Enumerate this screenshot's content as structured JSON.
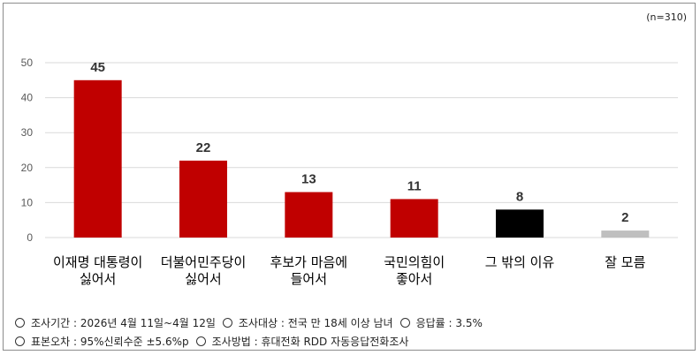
{
  "sample_note": "(n=310)",
  "footer": {
    "line1": [
      "조사기간 : 2026년 4월 11일~4월 12일",
      "조사대상 : 전국 만 18세 이상 남녀",
      "응답률 : 3.5%"
    ],
    "line2": [
      "표본오차 : 95%신뢰수준 ±5.6%p",
      "조사방법 : 휴대전화 RDD 자동응답전화조사"
    ]
  },
  "chart_data": {
    "type": "bar",
    "title": "",
    "xlabel": "",
    "ylabel": "",
    "ylim": [
      0,
      50
    ],
    "yticks": [
      0,
      10,
      20,
      30,
      40,
      50
    ],
    "grid": true,
    "categories": [
      [
        "이재명 대통령이",
        "싫어서"
      ],
      [
        "더불어민주당이",
        "싫어서"
      ],
      [
        "후보가 마음에",
        "들어서"
      ],
      [
        "국민의힘이",
        "좋아서"
      ],
      [
        "그 밖의 이유"
      ],
      [
        "잘 모름"
      ]
    ],
    "values": [
      45,
      22,
      13,
      11,
      8,
      2
    ],
    "bar_colors": [
      "#c00000",
      "#c00000",
      "#c00000",
      "#c00000",
      "#000000",
      "#bfbfbf"
    ],
    "grid_color": "#d9d9d9",
    "axis_color": "#d9d9d9"
  }
}
